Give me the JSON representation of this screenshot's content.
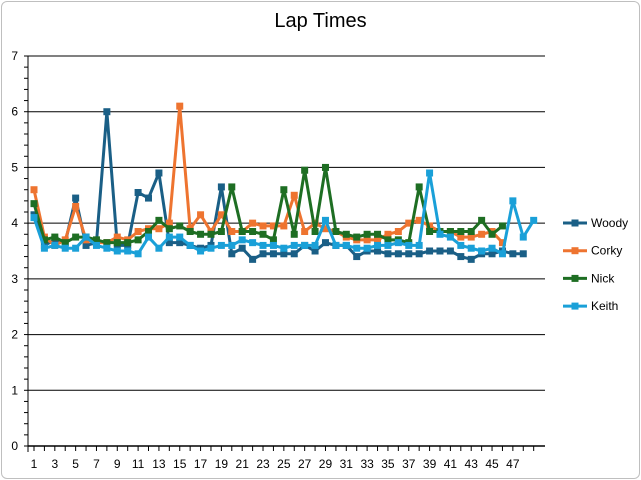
{
  "chart_data": {
    "type": "line",
    "title": "Lap Times",
    "xlabel": "",
    "ylabel": "",
    "ylim": [
      0,
      7
    ],
    "yticks": [
      "0",
      "1",
      "2",
      "3",
      "4",
      "5",
      "6",
      "7"
    ],
    "xtick_labels": [
      "1",
      "3",
      "5",
      "7",
      "9",
      "11",
      "13",
      "15",
      "17",
      "19",
      "21",
      "23",
      "25",
      "27",
      "29",
      "31",
      "33",
      "35",
      "37",
      "39",
      "41",
      "43",
      "45",
      "47"
    ],
    "grid": true,
    "legend": "right",
    "series": [
      {
        "name": "Woody",
        "color": "#1a5f86",
        "values": [
          4.15,
          3.6,
          3.7,
          3.65,
          4.45,
          3.6,
          3.65,
          6.0,
          3.6,
          3.6,
          4.55,
          4.45,
          4.9,
          3.65,
          3.65,
          3.6,
          3.55,
          3.6,
          4.65,
          3.45,
          3.55,
          3.35,
          3.45,
          3.45,
          3.45,
          3.45,
          3.6,
          3.5,
          3.65,
          3.6,
          3.6,
          3.4,
          3.5,
          3.5,
          3.45,
          3.45,
          3.45,
          3.45,
          3.5,
          3.5,
          3.5,
          3.4,
          3.35,
          3.45,
          3.45,
          3.5,
          3.45,
          3.45
        ]
      },
      {
        "name": "Corky",
        "color": "#ee7430",
        "values": [
          4.6,
          3.75,
          3.6,
          3.7,
          4.3,
          3.7,
          3.65,
          3.65,
          3.75,
          3.7,
          3.85,
          3.9,
          3.9,
          4.0,
          6.1,
          3.9,
          4.15,
          3.85,
          4.15,
          3.85,
          3.85,
          4.0,
          3.95,
          3.95,
          3.95,
          4.5,
          3.85,
          4.0,
          3.9,
          3.85,
          3.75,
          3.7,
          3.7,
          3.7,
          3.8,
          3.85,
          4.0,
          4.05,
          3.95,
          3.85,
          3.85,
          3.75,
          3.75,
          3.8,
          3.85,
          3.65
        ]
      },
      {
        "name": "Nick",
        "color": "#1e6e23",
        "values": [
          4.35,
          3.7,
          3.75,
          3.65,
          3.75,
          3.75,
          3.7,
          3.65,
          3.65,
          3.65,
          3.7,
          3.85,
          4.05,
          3.9,
          3.95,
          3.85,
          3.8,
          3.8,
          3.85,
          4.65,
          3.85,
          3.85,
          3.8,
          3.7,
          4.6,
          3.8,
          4.95,
          3.85,
          5.0,
          3.85,
          3.8,
          3.75,
          3.8,
          3.8,
          3.7,
          3.7,
          3.65,
          4.65,
          3.85,
          3.85,
          3.85,
          3.85,
          3.85,
          4.05,
          3.8,
          3.95
        ]
      },
      {
        "name": "Keith",
        "color": "#1aa0d8",
        "values": [
          4.1,
          3.55,
          3.6,
          3.55,
          3.55,
          3.75,
          3.6,
          3.55,
          3.5,
          3.5,
          3.45,
          3.75,
          3.55,
          3.75,
          3.75,
          3.6,
          3.5,
          3.55,
          3.6,
          3.6,
          3.7,
          3.65,
          3.6,
          3.6,
          3.55,
          3.6,
          3.6,
          3.6,
          4.05,
          3.6,
          3.6,
          3.55,
          3.55,
          3.6,
          3.6,
          3.65,
          3.6,
          3.6,
          4.9,
          3.8,
          3.75,
          3.6,
          3.55,
          3.5,
          3.55,
          3.45,
          4.4,
          3.75,
          4.05
        ]
      }
    ]
  }
}
